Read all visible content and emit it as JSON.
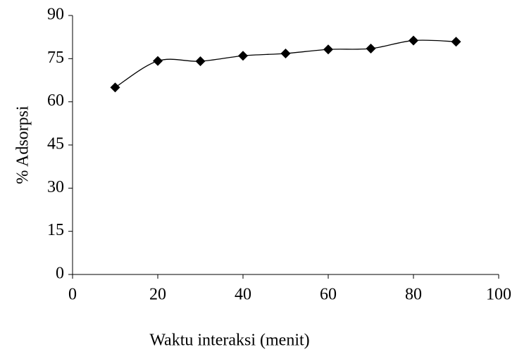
{
  "chart_data": {
    "type": "line",
    "x_label": "Waktu interaksi (menit)",
    "y_label": "% Adsorpsi",
    "x": [
      10,
      20,
      30,
      40,
      50,
      60,
      70,
      80,
      90
    ],
    "series": [
      {
        "color": "#000000",
        "values": [
          65.0,
          74.2,
          74.1,
          76.0,
          76.8,
          78.2,
          78.5,
          81.3,
          80.9
        ]
      }
    ],
    "xlim": [
      0,
      100
    ],
    "xticks": [
      0,
      20,
      40,
      60,
      80,
      100
    ],
    "ylim": [
      0,
      90
    ],
    "yticks": [
      0,
      15,
      30,
      45,
      60,
      75,
      90
    ],
    "smooth": true,
    "marker": "diamond",
    "grid": false
  }
}
